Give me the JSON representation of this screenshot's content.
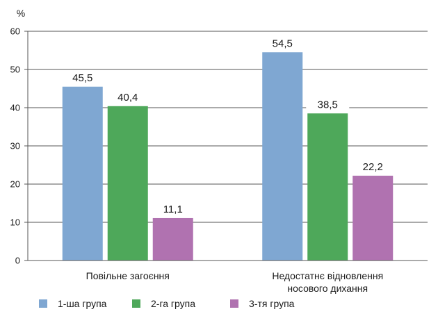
{
  "chart_data": {
    "type": "bar",
    "y_unit": "%",
    "categories": [
      [
        "Повільне загоєння"
      ],
      [
        "Недостатнє відновлення",
        "носового дихання"
      ]
    ],
    "series": [
      {
        "name": "1-ша група",
        "values": [
          45.5,
          54.5
        ],
        "labels": [
          "45,5",
          "54,5"
        ],
        "color": "#7fa7d2"
      },
      {
        "name": "2-га група",
        "values": [
          40.4,
          38.5
        ],
        "labels": [
          "40,4",
          "38,5"
        ],
        "color": "#4ea85a"
      },
      {
        "name": "3-тя група",
        "values": [
          11.1,
          22.2
        ],
        "labels": [
          "11,1",
          "22,2"
        ],
        "color": "#b072b0"
      }
    ],
    "ylim": [
      0,
      60
    ],
    "yticks": [
      0,
      10,
      20,
      30,
      40,
      50,
      60
    ],
    "grid": true,
    "legend": "bottom"
  }
}
